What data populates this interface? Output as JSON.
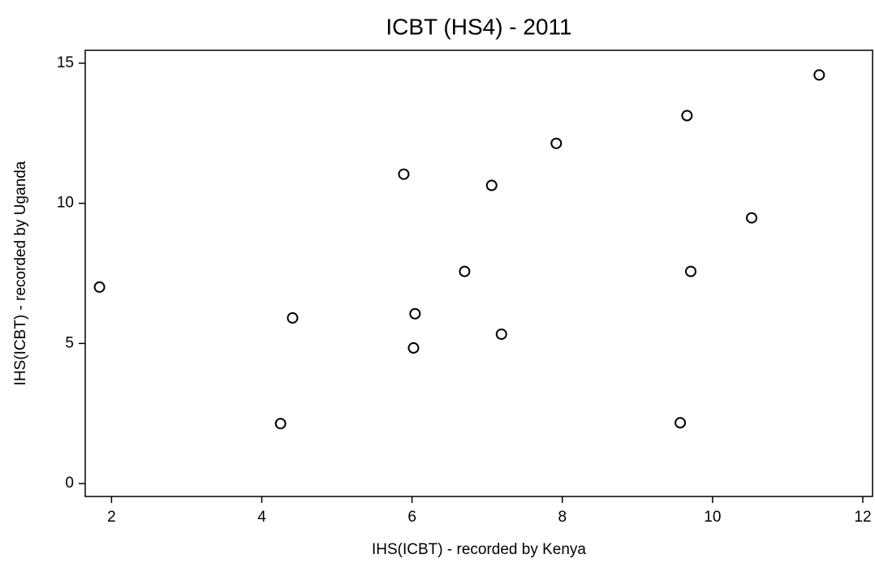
{
  "chart_data": {
    "type": "scatter",
    "title": "ICBT (HS4) - 2011",
    "x_label": "IHS(ICBT) - recorded by Kenya",
    "y_label": "IHS(ICBT) - recorded by Uganda",
    "x": [
      1.84,
      4.41,
      4.25,
      5.89,
      6.04,
      6.02,
      6.7,
      7.06,
      7.19,
      7.92,
      9.66,
      9.71,
      9.57,
      10.52,
      11.42
    ],
    "y": [
      7.01,
      5.91,
      2.14,
      11.04,
      6.06,
      4.84,
      7.57,
      10.64,
      5.33,
      12.14,
      13.13,
      7.57,
      2.17,
      9.48,
      14.58
    ],
    "color": "#000000",
    "xlim": [
      1.65,
      12.13
    ],
    "ylim": [
      -0.46,
      15.46
    ],
    "xticks": [
      2,
      4,
      6,
      8,
      10,
      12
    ],
    "yticks": [
      0,
      5,
      10,
      15
    ],
    "grid": false
  }
}
